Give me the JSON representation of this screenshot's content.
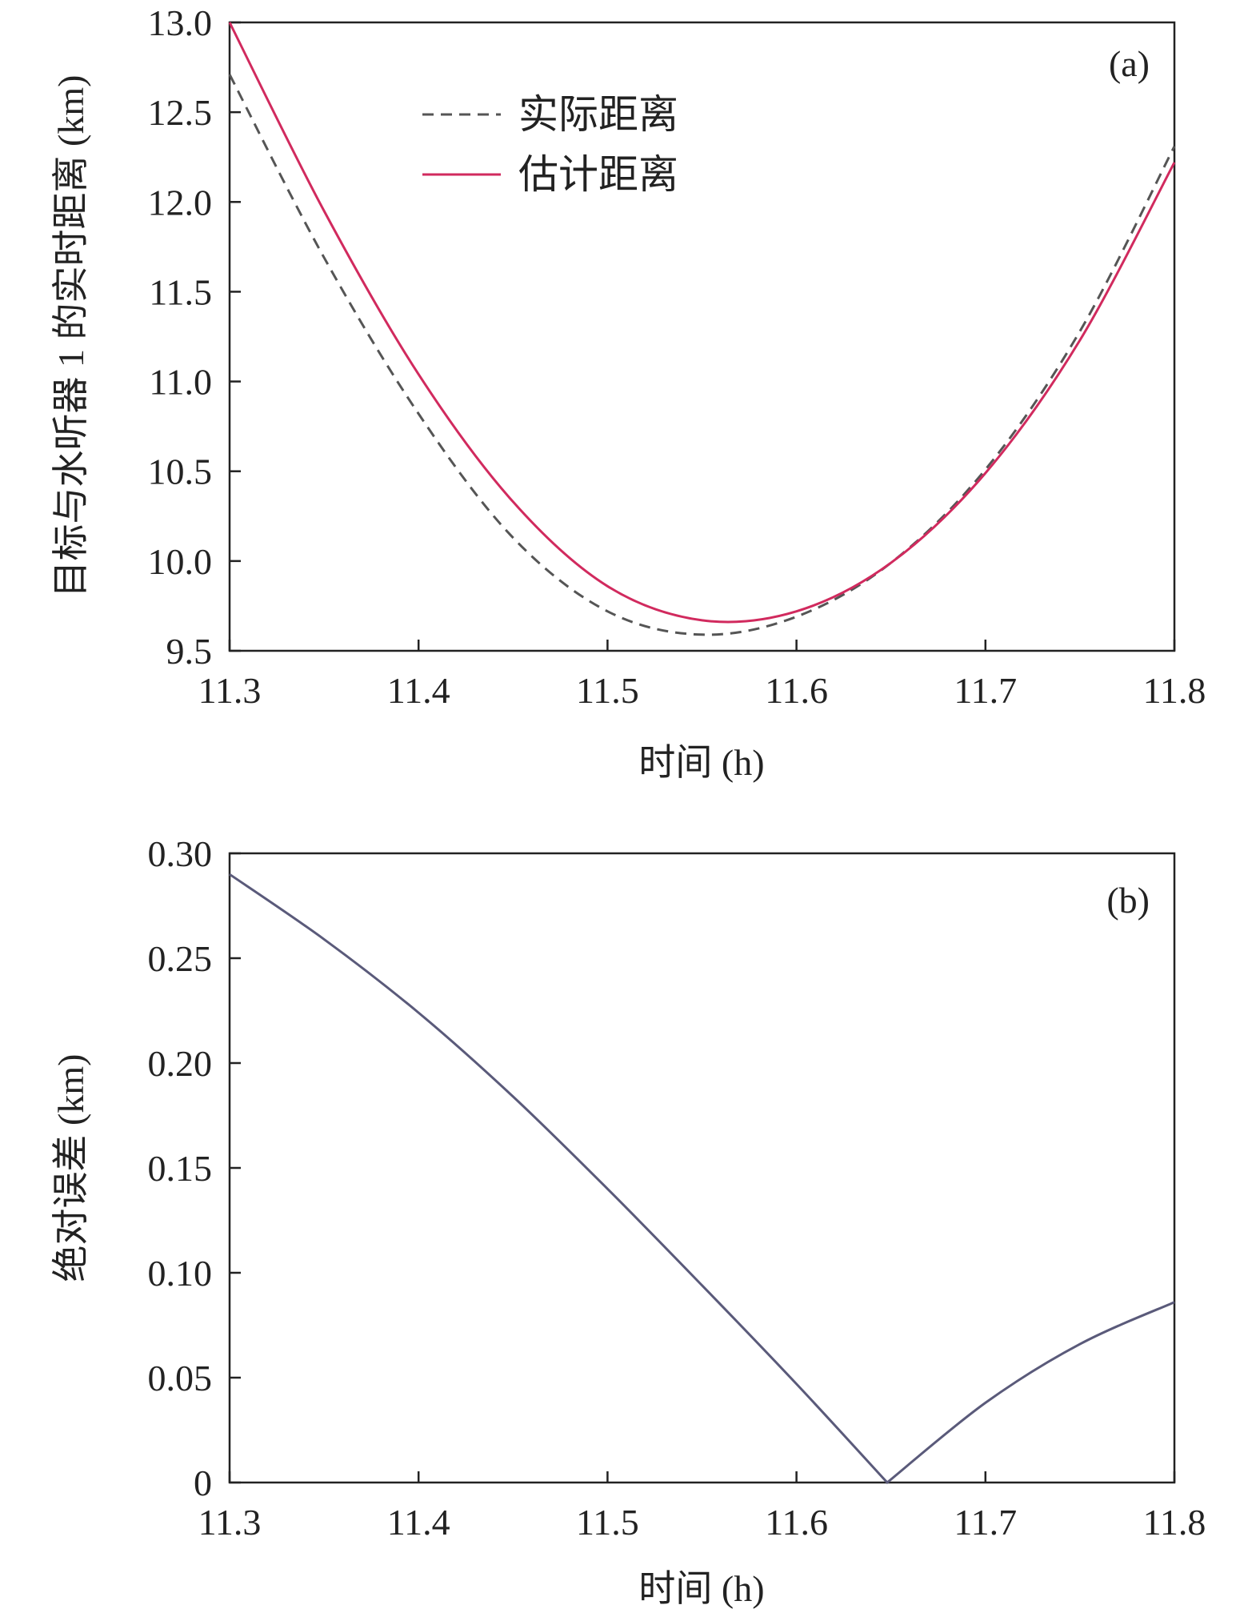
{
  "chart_data": [
    {
      "type": "line",
      "panel_label": "(a)",
      "xlabel": "时间 (h)",
      "ylabel": "目标与水听器 1 的实时距离 (km)",
      "xlim": [
        11.3,
        11.8
      ],
      "ylim": [
        9.5,
        13.0
      ],
      "xticks": [
        "11.3",
        "11.4",
        "11.5",
        "11.6",
        "11.7",
        "11.8"
      ],
      "yticks": [
        "9.5",
        "10.0",
        "10.5",
        "11.0",
        "11.5",
        "12.0",
        "12.5",
        "13.0"
      ],
      "legend_position": "upper-center",
      "grid": false,
      "x": [
        11.3,
        11.35,
        11.4,
        11.45,
        11.5,
        11.55,
        11.6,
        11.65,
        11.7,
        11.75,
        11.8
      ],
      "series": [
        {
          "name": "实际距离",
          "style": "dashed",
          "color": "#555555",
          "values": [
            12.71,
            11.69,
            10.82,
            10.13,
            9.72,
            9.59,
            9.69,
            9.99,
            10.51,
            11.28,
            12.31
          ]
        },
        {
          "name": "估计距离",
          "style": "solid",
          "color": "#d12a5e",
          "values": [
            13.0,
            11.95,
            11.04,
            10.33,
            9.86,
            9.67,
            9.72,
            9.99,
            10.49,
            11.23,
            12.22
          ]
        }
      ]
    },
    {
      "type": "line",
      "panel_label": "(b)",
      "xlabel": "时间 (h)",
      "ylabel": "绝对误差 (km)",
      "xlim": [
        11.3,
        11.8
      ],
      "ylim": [
        0,
        0.3
      ],
      "xticks": [
        "11.3",
        "11.4",
        "11.5",
        "11.6",
        "11.7",
        "11.8"
      ],
      "yticks": [
        "0",
        "0.05",
        "0.10",
        "0.15",
        "0.20",
        "0.25",
        "0.30"
      ],
      "grid": false,
      "x": [
        11.3,
        11.35,
        11.4,
        11.45,
        11.5,
        11.55,
        11.6,
        11.648,
        11.7,
        11.75,
        11.8
      ],
      "series": [
        {
          "style": "solid",
          "color": "#5a5a7a",
          "values": [
            0.29,
            0.259,
            0.224,
            0.184,
            0.14,
            0.094,
            0.047,
            0.0,
            0.038,
            0.066,
            0.086
          ]
        }
      ]
    }
  ]
}
